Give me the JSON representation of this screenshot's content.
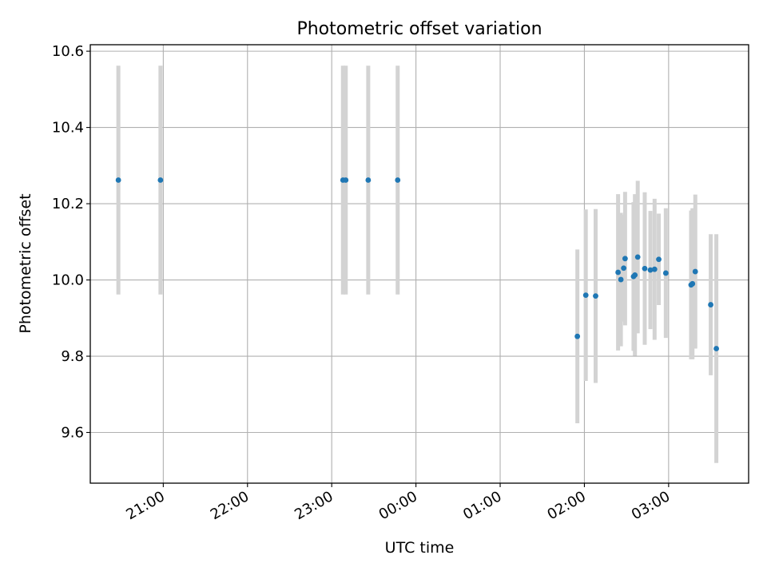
{
  "chart_data": {
    "type": "scatter",
    "title": "Photometric offset variation",
    "xlabel": "UTC time",
    "ylabel": "Photometric offset",
    "x_ticks": [
      "21:00",
      "22:00",
      "23:00",
      "00:00",
      "01:00",
      "02:00",
      "03:00"
    ],
    "y_ticks": [
      "9.6",
      "9.8",
      "10.0",
      "10.2",
      "10.4",
      "10.6"
    ],
    "xlim": [
      "20:08",
      "03:57"
    ],
    "ylim": [
      9.467,
      10.617
    ],
    "grid": true,
    "errorbar_color": "#d3d3d3",
    "marker_color": "#1f77b4",
    "points": [
      {
        "x": "20:28",
        "y": 10.262,
        "yerr": 0.3
      },
      {
        "x": "20:58",
        "y": 10.262,
        "yerr": 0.3
      },
      {
        "x": "23:08",
        "y": 10.262,
        "yerr": 0.3
      },
      {
        "x": "23:10",
        "y": 10.262,
        "yerr": 0.3
      },
      {
        "x": "23:26",
        "y": 10.262,
        "yerr": 0.3
      },
      {
        "x": "23:47",
        "y": 10.262,
        "yerr": 0.3
      },
      {
        "x": "01:55",
        "y": 9.852,
        "yerr": 0.228
      },
      {
        "x": "02:01",
        "y": 9.96,
        "yerr": 0.225
      },
      {
        "x": "02:08",
        "y": 9.958,
        "yerr": 0.228
      },
      {
        "x": "02:24",
        "y": 10.02,
        "yerr": 0.205
      },
      {
        "x": "02:26",
        "y": 10.001,
        "yerr": 0.175
      },
      {
        "x": "02:28",
        "y": 10.031,
        "yerr": 0.14
      },
      {
        "x": "02:29",
        "y": 10.056,
        "yerr": 0.175
      },
      {
        "x": "02:35",
        "y": 10.009,
        "yerr": 0.195
      },
      {
        "x": "02:36",
        "y": 10.013,
        "yerr": 0.212
      },
      {
        "x": "02:38",
        "y": 10.06,
        "yerr": 0.2
      },
      {
        "x": "02:43",
        "y": 10.03,
        "yerr": 0.2
      },
      {
        "x": "02:47",
        "y": 10.026,
        "yerr": 0.155
      },
      {
        "x": "02:50",
        "y": 10.028,
        "yerr": 0.185
      },
      {
        "x": "02:53",
        "y": 10.054,
        "yerr": 0.12
      },
      {
        "x": "02:58",
        "y": 10.018,
        "yerr": 0.17
      },
      {
        "x": "03:16",
        "y": 9.987,
        "yerr": 0.195
      },
      {
        "x": "03:17",
        "y": 9.99,
        "yerr": 0.198
      },
      {
        "x": "03:19",
        "y": 10.022,
        "yerr": 0.202
      },
      {
        "x": "03:30",
        "y": 9.935,
        "yerr": 0.185
      },
      {
        "x": "03:34",
        "y": 9.82,
        "yerr": 0.3
      }
    ]
  }
}
